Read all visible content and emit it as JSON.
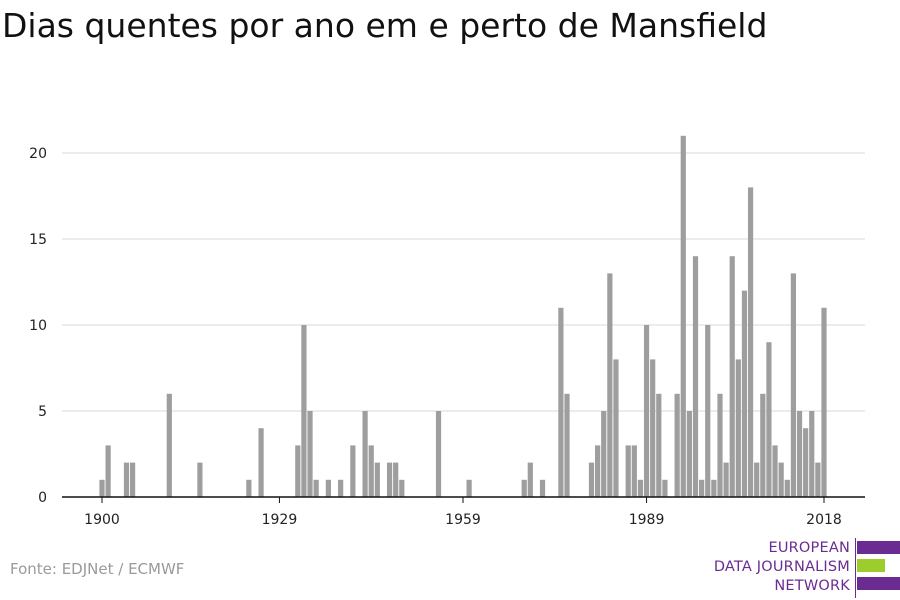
{
  "title": "Dias quentes por ano em e perto de Mansfield",
  "source": "Fonte: EDJNet / ECMWF",
  "logo": {
    "lines": [
      "EUROPEAN",
      "DATA JOURNALISM",
      "NETWORK"
    ],
    "colors": {
      "purple": "#6b2c91",
      "green": "#9ccd2c"
    }
  },
  "colors": {
    "bar": "#9e9e9e",
    "grid": "#d9d9d9",
    "axis": "#111111"
  },
  "chart_data": {
    "type": "bar",
    "title": "Dias quentes por ano em e perto de Mansfield",
    "xlabel": "",
    "ylabel": "",
    "x_ticks": [
      1900,
      1929,
      1959,
      1989,
      2018
    ],
    "y_ticks": [
      0,
      5,
      10,
      15,
      20
    ],
    "xlim": [
      1896,
      2024
    ],
    "ylim": [
      0,
      22
    ],
    "grid": true,
    "x": [
      1900,
      1901,
      1904,
      1905,
      1911,
      1916,
      1924,
      1926,
      1932,
      1933,
      1934,
      1935,
      1937,
      1939,
      1941,
      1943,
      1944,
      1945,
      1947,
      1948,
      1949,
      1955,
      1960,
      1969,
      1970,
      1972,
      1975,
      1976,
      1980,
      1981,
      1982,
      1983,
      1984,
      1986,
      1987,
      1988,
      1989,
      1990,
      1991,
      1992,
      1994,
      1995,
      1996,
      1997,
      1998,
      1999,
      2000,
      2001,
      2002,
      2003,
      2004,
      2005,
      2006,
      2007,
      2008,
      2009,
      2010,
      2011,
      2012,
      2013,
      2014,
      2015,
      2016,
      2017,
      2018
    ],
    "values": [
      1,
      3,
      2,
      2,
      6,
      2,
      1,
      4,
      3,
      10,
      5,
      1,
      1,
      1,
      3,
      5,
      3,
      2,
      2,
      2,
      1,
      5,
      1,
      1,
      2,
      1,
      11,
      6,
      2,
      3,
      5,
      13,
      8,
      3,
      3,
      1,
      10,
      8,
      6,
      1,
      6,
      21,
      5,
      14,
      1,
      10,
      1,
      6,
      2,
      14,
      8,
      12,
      18,
      2,
      6,
      9,
      3,
      2,
      1,
      13,
      5,
      4,
      5,
      2,
      11
    ]
  }
}
